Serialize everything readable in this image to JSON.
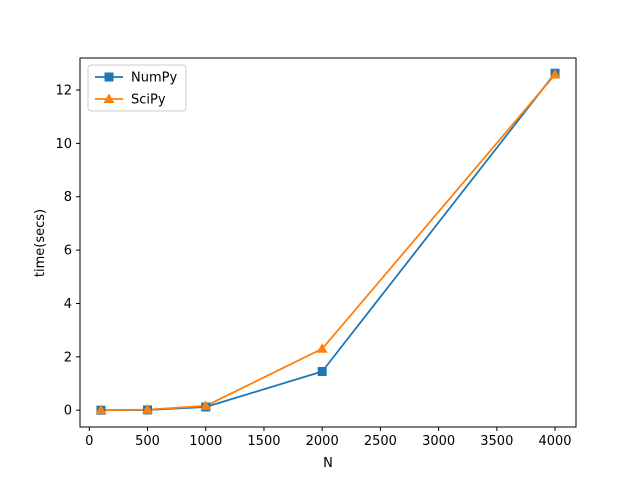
{
  "chart_data": {
    "type": "line",
    "title": "",
    "xlabel": "N",
    "ylabel": "time(secs)",
    "xlim": [
      -80,
      4180
    ],
    "ylim": [
      -0.63,
      13.2
    ],
    "xticks": [
      0,
      500,
      1000,
      1500,
      2000,
      2500,
      3000,
      3500,
      4000
    ],
    "yticks": [
      0,
      2,
      4,
      6,
      8,
      10,
      12
    ],
    "grid": false,
    "legend_position": "top-left",
    "series": [
      {
        "name": "NumPy",
        "color": "#1f77b4",
        "marker": "square",
        "x": [
          100,
          500,
          1000,
          2000,
          4000
        ],
        "y": [
          0.0,
          0.01,
          0.12,
          1.45,
          12.63
        ]
      },
      {
        "name": "SciPy",
        "color": "#ff7f0e",
        "marker": "triangle",
        "x": [
          100,
          500,
          1000,
          2000,
          4000
        ],
        "y": [
          0.0,
          0.02,
          0.16,
          2.3,
          12.58
        ]
      }
    ]
  }
}
